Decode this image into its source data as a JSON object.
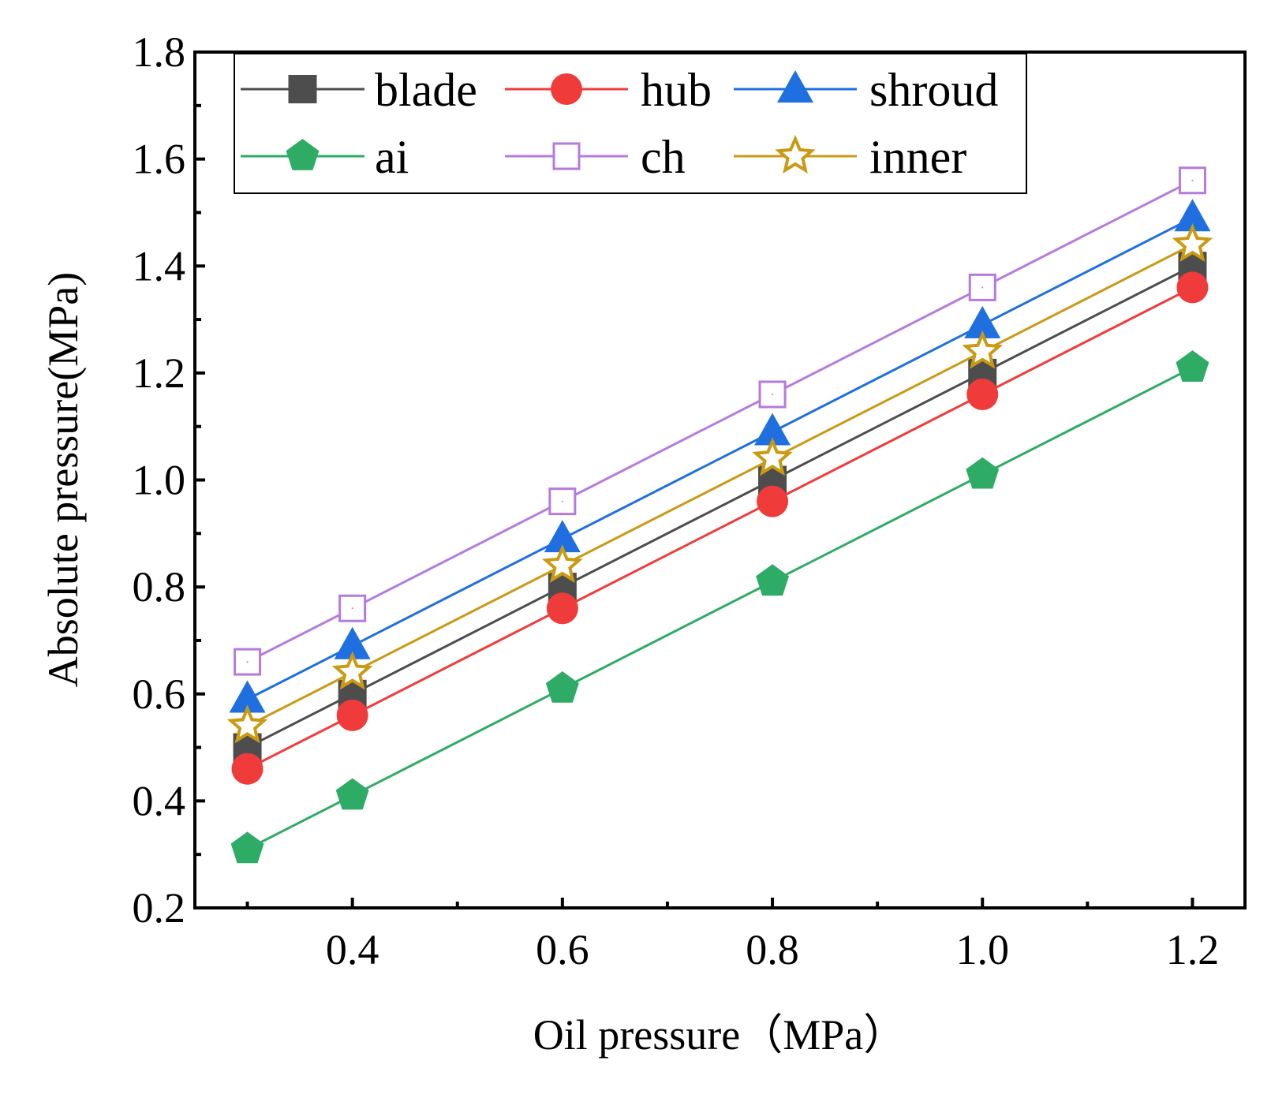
{
  "chart_data": {
    "type": "line",
    "xlabel": "Oil pressure（MPa）",
    "ylabel": "Absolute pressure(MPa)",
    "xlim": [
      0.25,
      1.25
    ],
    "ylim": [
      0.2,
      1.8
    ],
    "xticks": [
      0.4,
      0.6,
      0.8,
      1.0,
      1.2
    ],
    "xtick_labels": [
      "0.4",
      "0.6",
      "0.8",
      "1.0",
      "1.2"
    ],
    "yticks": [
      0.2,
      0.4,
      0.6,
      0.8,
      1.0,
      1.2,
      1.4,
      1.6,
      1.8
    ],
    "ytick_labels": [
      "0.2",
      "0.4",
      "0.6",
      "0.8",
      "1.0",
      "1.2",
      "1.4",
      "1.6",
      "1.8"
    ],
    "x": [
      0.3,
      0.4,
      0.6,
      0.8,
      1.0,
      1.2
    ],
    "grid": false,
    "legend_position": "top",
    "series": [
      {
        "name": "blade",
        "marker": "square",
        "color": "#4d4d4d",
        "values": [
          0.5,
          0.6,
          0.8,
          1.0,
          1.2,
          1.4
        ]
      },
      {
        "name": "hub",
        "marker": "circle",
        "color": "#f03b3b",
        "values": [
          0.46,
          0.56,
          0.76,
          0.96,
          1.16,
          1.36
        ]
      },
      {
        "name": "shroud",
        "marker": "triangle",
        "color": "#1f6fe0",
        "values": [
          0.59,
          0.69,
          0.89,
          1.09,
          1.29,
          1.49
        ]
      },
      {
        "name": "ai",
        "marker": "pentagon",
        "color": "#2eab64",
        "values": [
          0.31,
          0.41,
          0.61,
          0.81,
          1.01,
          1.21
        ]
      },
      {
        "name": "ch",
        "marker": "open-square",
        "color": "#b57bdc",
        "values": [
          0.66,
          0.76,
          0.96,
          1.16,
          1.36,
          1.56
        ]
      },
      {
        "name": "inner",
        "marker": "open-star",
        "color": "#c99a12",
        "values": [
          0.54,
          0.64,
          0.84,
          1.04,
          1.24,
          1.44
        ]
      }
    ]
  }
}
